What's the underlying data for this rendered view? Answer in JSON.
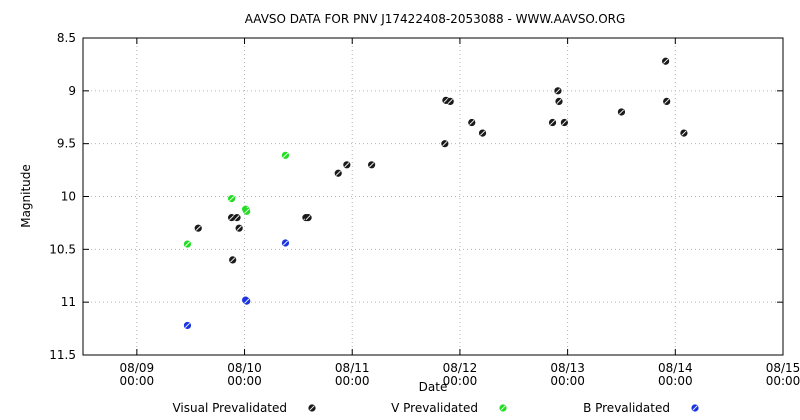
{
  "chart_data": {
    "type": "scatter",
    "title": "AAVSO DATA FOR PNV J17422408-2053088 - WWW.AAVSO.ORG",
    "xlabel": "Date",
    "ylabel": "Magnitude",
    "xlim": [
      0,
      6.5
    ],
    "ylim": [
      11.5,
      8.5
    ],
    "y_inverted": true,
    "grid": true,
    "legend_position": "bottom",
    "x_ticks": [
      {
        "value": 0.5,
        "label_line1": "08/09",
        "label_line2": "00:00"
      },
      {
        "value": 1.5,
        "label_line1": "08/10",
        "label_line2": "00:00"
      },
      {
        "value": 2.5,
        "label_line1": "08/11",
        "label_line2": "00:00"
      },
      {
        "value": 3.5,
        "label_line1": "08/12",
        "label_line2": "00:00"
      },
      {
        "value": 4.5,
        "label_line1": "08/13",
        "label_line2": "00:00"
      },
      {
        "value": 5.5,
        "label_line1": "08/14",
        "label_line2": "00:00"
      },
      {
        "value": 6.5,
        "label_line1": "08/15",
        "label_line2": "00:00"
      }
    ],
    "y_ticks": [
      {
        "value": 8.5,
        "label": "8.5"
      },
      {
        "value": 9,
        "label": "9"
      },
      {
        "value": 9.5,
        "label": "9.5"
      },
      {
        "value": 10,
        "label": "10"
      },
      {
        "value": 10.5,
        "label": "10.5"
      },
      {
        "value": 11,
        "label": "11"
      },
      {
        "value": 11.5,
        "label": "11.5"
      }
    ],
    "series": [
      {
        "name": "Visual Prevalidated",
        "color": "#1a1a1a",
        "points": [
          [
            1.07,
            10.3
          ],
          [
            1.38,
            10.2
          ],
          [
            1.39,
            10.6
          ],
          [
            1.43,
            10.2
          ],
          [
            1.45,
            10.3
          ],
          [
            2.07,
            10.2
          ],
          [
            2.09,
            10.2
          ],
          [
            2.37,
            9.78
          ],
          [
            2.45,
            9.7
          ],
          [
            2.68,
            9.7
          ],
          [
            3.36,
            9.5
          ],
          [
            3.37,
            9.09
          ],
          [
            3.41,
            9.1
          ],
          [
            3.61,
            9.3
          ],
          [
            3.71,
            9.4
          ],
          [
            4.36,
            9.3
          ],
          [
            4.41,
            9.0
          ],
          [
            4.42,
            9.1
          ],
          [
            4.47,
            9.3
          ],
          [
            5.0,
            9.2
          ],
          [
            5.41,
            8.72
          ],
          [
            5.42,
            9.1
          ],
          [
            5.58,
            9.4
          ]
        ]
      },
      {
        "name": "V Prevalidated",
        "color": "#22dd22",
        "points": [
          [
            0.97,
            10.45
          ],
          [
            1.38,
            10.02
          ],
          [
            1.51,
            10.12
          ],
          [
            1.52,
            10.14
          ],
          [
            1.88,
            9.61
          ]
        ]
      },
      {
        "name": "B Prevalidated",
        "color": "#1a35e0",
        "points": [
          [
            0.97,
            11.22
          ],
          [
            1.51,
            10.98
          ],
          [
            1.52,
            10.99
          ],
          [
            1.88,
            10.44
          ]
        ]
      }
    ]
  }
}
